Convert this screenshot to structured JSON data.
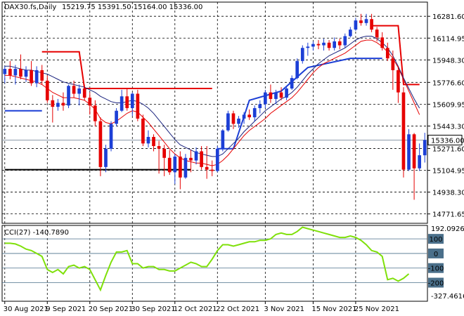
{
  "header": {
    "symbol": "DAX30.fs,Daily",
    "ohlc": "15219.75 15391.50 15164.00 15336.00"
  },
  "chart_data": {
    "type": "candlestick",
    "price_panel": {
      "y_ticks": [
        16281.6,
        16114.95,
        15948.3,
        15776.6,
        15609.95,
        15443.3,
        15271.6,
        15104.95,
        14938.3,
        14771.65
      ],
      "y_tick_labels": [
        "16281.60",
        "16114.95",
        "15948.30",
        "15776.60",
        "15609.95",
        "15443.30",
        "15271.60",
        "15104.95",
        "14938.30",
        "14771.65"
      ],
      "ylim": [
        14700,
        16390
      ],
      "current_price": 15336.0,
      "current_price_label": "15336.00",
      "candles": [
        {
          "o": 15840,
          "h": 15900,
          "l": 15770,
          "c": 15880
        },
        {
          "o": 15880,
          "h": 15940,
          "l": 15800,
          "c": 15830
        },
        {
          "o": 15830,
          "h": 15910,
          "l": 15760,
          "c": 15880
        },
        {
          "o": 15880,
          "h": 15990,
          "l": 15800,
          "c": 15820
        },
        {
          "o": 15820,
          "h": 15900,
          "l": 15780,
          "c": 15870
        },
        {
          "o": 15870,
          "h": 15940,
          "l": 15750,
          "c": 15770
        },
        {
          "o": 15770,
          "h": 15900,
          "l": 15740,
          "c": 15870
        },
        {
          "o": 15870,
          "h": 15910,
          "l": 15760,
          "c": 15790
        },
        {
          "o": 15790,
          "h": 15830,
          "l": 15620,
          "c": 15640
        },
        {
          "o": 15640,
          "h": 15680,
          "l": 15470,
          "c": 15590
        },
        {
          "o": 15590,
          "h": 15650,
          "l": 15560,
          "c": 15620
        },
        {
          "o": 15620,
          "h": 15700,
          "l": 15560,
          "c": 15600
        },
        {
          "o": 15600,
          "h": 15760,
          "l": 15580,
          "c": 15750
        },
        {
          "o": 15750,
          "h": 15790,
          "l": 15660,
          "c": 15690
        },
        {
          "o": 15690,
          "h": 15760,
          "l": 15600,
          "c": 15730
        },
        {
          "o": 15730,
          "h": 15760,
          "l": 15640,
          "c": 15660
        },
        {
          "o": 15660,
          "h": 15700,
          "l": 15530,
          "c": 15600
        },
        {
          "o": 15600,
          "h": 15640,
          "l": 15440,
          "c": 15480
        },
        {
          "o": 15480,
          "h": 15510,
          "l": 15060,
          "c": 15130
        },
        {
          "o": 15130,
          "h": 15300,
          "l": 15090,
          "c": 15270
        },
        {
          "o": 15270,
          "h": 15480,
          "l": 15250,
          "c": 15460
        },
        {
          "o": 15460,
          "h": 15580,
          "l": 15440,
          "c": 15560
        },
        {
          "o": 15560,
          "h": 15720,
          "l": 15550,
          "c": 15670
        },
        {
          "o": 15670,
          "h": 15730,
          "l": 15560,
          "c": 15580
        },
        {
          "o": 15580,
          "h": 15700,
          "l": 15520,
          "c": 15690
        },
        {
          "o": 15690,
          "h": 15720,
          "l": 15480,
          "c": 15500
        },
        {
          "o": 15500,
          "h": 15530,
          "l": 15290,
          "c": 15310
        },
        {
          "o": 15310,
          "h": 15410,
          "l": 15280,
          "c": 15360
        },
        {
          "o": 15360,
          "h": 15380,
          "l": 15250,
          "c": 15290
        },
        {
          "o": 15290,
          "h": 15330,
          "l": 15080,
          "c": 15270
        },
        {
          "o": 15270,
          "h": 15300,
          "l": 15060,
          "c": 15200
        },
        {
          "o": 15200,
          "h": 15260,
          "l": 15070,
          "c": 15090
        },
        {
          "o": 15090,
          "h": 15230,
          "l": 15000,
          "c": 15210
        },
        {
          "o": 15210,
          "h": 15250,
          "l": 14960,
          "c": 15050
        },
        {
          "o": 15050,
          "h": 15230,
          "l": 15040,
          "c": 15200
        },
        {
          "o": 15200,
          "h": 15260,
          "l": 15090,
          "c": 15180
        },
        {
          "o": 15180,
          "h": 15280,
          "l": 15150,
          "c": 15250
        },
        {
          "o": 15250,
          "h": 15290,
          "l": 15110,
          "c": 15130
        },
        {
          "o": 15130,
          "h": 15290,
          "l": 15040,
          "c": 15110
        },
        {
          "o": 15110,
          "h": 15180,
          "l": 15060,
          "c": 15100
        },
        {
          "o": 15100,
          "h": 15290,
          "l": 15090,
          "c": 15270
        },
        {
          "o": 15270,
          "h": 15420,
          "l": 15250,
          "c": 15410
        },
        {
          "o": 15410,
          "h": 15560,
          "l": 15400,
          "c": 15540
        },
        {
          "o": 15540,
          "h": 15560,
          "l": 15420,
          "c": 15460
        },
        {
          "o": 15460,
          "h": 15520,
          "l": 15430,
          "c": 15500
        },
        {
          "o": 15500,
          "h": 15550,
          "l": 15460,
          "c": 15530
        },
        {
          "o": 15530,
          "h": 15570,
          "l": 15490,
          "c": 15510
        },
        {
          "o": 15510,
          "h": 15600,
          "l": 15480,
          "c": 15580
        },
        {
          "o": 15580,
          "h": 15640,
          "l": 15540,
          "c": 15610
        },
        {
          "o": 15610,
          "h": 15720,
          "l": 15580,
          "c": 15700
        },
        {
          "o": 15700,
          "h": 15760,
          "l": 15620,
          "c": 15650
        },
        {
          "o": 15650,
          "h": 15720,
          "l": 15610,
          "c": 15700
        },
        {
          "o": 15700,
          "h": 15740,
          "l": 15640,
          "c": 15660
        },
        {
          "o": 15660,
          "h": 15750,
          "l": 15640,
          "c": 15730
        },
        {
          "o": 15730,
          "h": 15830,
          "l": 15720,
          "c": 15810
        },
        {
          "o": 15810,
          "h": 15960,
          "l": 15800,
          "c": 15940
        },
        {
          "o": 15940,
          "h": 16060,
          "l": 15920,
          "c": 16040
        },
        {
          "o": 16040,
          "h": 16080,
          "l": 15980,
          "c": 16050
        },
        {
          "o": 16050,
          "h": 16090,
          "l": 16020,
          "c": 16070
        },
        {
          "o": 16070,
          "h": 16100,
          "l": 16030,
          "c": 16060
        },
        {
          "o": 16060,
          "h": 16110,
          "l": 16020,
          "c": 16080
        },
        {
          "o": 16080,
          "h": 16100,
          "l": 16020,
          "c": 16040
        },
        {
          "o": 16040,
          "h": 16120,
          "l": 16020,
          "c": 16090
        },
        {
          "o": 16090,
          "h": 16110,
          "l": 16030,
          "c": 16060
        },
        {
          "o": 16060,
          "h": 16150,
          "l": 16040,
          "c": 16130
        },
        {
          "o": 16130,
          "h": 16200,
          "l": 16120,
          "c": 16180
        },
        {
          "o": 16180,
          "h": 16270,
          "l": 16170,
          "c": 16250
        },
        {
          "o": 16250,
          "h": 16300,
          "l": 16210,
          "c": 16230
        },
        {
          "o": 16230,
          "h": 16300,
          "l": 16210,
          "c": 16260
        },
        {
          "o": 16260,
          "h": 16300,
          "l": 16160,
          "c": 16180
        },
        {
          "o": 16180,
          "h": 16200,
          "l": 16090,
          "c": 16120
        },
        {
          "o": 16120,
          "h": 16160,
          "l": 16020,
          "c": 16040
        },
        {
          "o": 16040,
          "h": 16080,
          "l": 15940,
          "c": 15960
        },
        {
          "o": 15960,
          "h": 16020,
          "l": 15720,
          "c": 15870
        },
        {
          "o": 15870,
          "h": 15900,
          "l": 15620,
          "c": 15700
        },
        {
          "o": 15700,
          "h": 15740,
          "l": 15050,
          "c": 15110
        },
        {
          "o": 15110,
          "h": 15420,
          "l": 15100,
          "c": 15380
        },
        {
          "o": 15380,
          "h": 15390,
          "l": 14880,
          "c": 15120
        },
        {
          "o": 15120,
          "h": 15310,
          "l": 15100,
          "c": 15220
        },
        {
          "o": 15219.75,
          "h": 15391.5,
          "l": 15164.0,
          "c": 15336.0
        }
      ],
      "ma_blue": [
        15900,
        15900,
        15890,
        15880,
        15870,
        15870,
        15860,
        15850,
        15840,
        15820,
        15800,
        15780,
        15770,
        15760,
        15750,
        15740,
        15720,
        15700,
        15670,
        15650,
        15630,
        15620,
        15620,
        15630,
        15640,
        15630,
        15610,
        15580,
        15540,
        15490,
        15440,
        15390,
        15340,
        15300,
        15280,
        15260,
        15240,
        15230,
        15220,
        15210,
        15210,
        15230,
        15270,
        15310,
        15350,
        15400,
        15440,
        15480,
        15520,
        15560,
        15590,
        15620,
        15650,
        15670,
        15700,
        15740,
        15790,
        15840,
        15880,
        15920,
        15950,
        15980,
        16000,
        16020,
        16040,
        16070,
        16100,
        16120,
        16130,
        16130,
        16110,
        16080,
        16040,
        15980,
        15900,
        15810,
        15730,
        15650,
        15580
      ],
      "ma_red": [
        15830,
        15830,
        15820,
        15810,
        15800,
        15790,
        15780,
        15760,
        15730,
        15700,
        15680,
        15660,
        15660,
        15660,
        15650,
        15640,
        15610,
        15570,
        15500,
        15470,
        15460,
        15480,
        15510,
        15540,
        15560,
        15550,
        15510,
        15470,
        15420,
        15370,
        15320,
        15270,
        15230,
        15200,
        15180,
        15170,
        15160,
        15160,
        15150,
        15140,
        15150,
        15180,
        15220,
        15270,
        15320,
        15370,
        15410,
        15440,
        15470,
        15500,
        15540,
        15570,
        15600,
        15630,
        15660,
        15700,
        15750,
        15800,
        15850,
        15890,
        15920,
        15940,
        15960,
        15980,
        16000,
        16030,
        16060,
        16090,
        16100,
        16100,
        16080,
        16050,
        16010,
        15960,
        15890,
        15800,
        15710,
        15620,
        15530
      ]
    },
    "levels": [
      {
        "name": "resistance-high",
        "color": "#e60000",
        "points": [
          [
            7,
            16010
          ],
          [
            14,
            16010
          ],
          [
            15,
            15730
          ],
          [
            39,
            15730
          ]
        ]
      },
      {
        "name": "support-high",
        "color": "#1c3fd6",
        "points": [
          [
            0,
            15560
          ],
          [
            7,
            15560
          ]
        ]
      },
      {
        "name": "support-low",
        "color": "#000000",
        "points": [
          [
            0,
            15110
          ],
          [
            35,
            15110
          ]
        ]
      },
      {
        "name": "trend-step",
        "color": "#1c3fd6",
        "points": [
          [
            40,
            15270
          ],
          [
            43,
            15270
          ],
          [
            46,
            15640
          ],
          [
            52,
            15710
          ],
          [
            57,
            15890
          ],
          [
            65,
            15960
          ],
          [
            70,
            15960
          ],
          [
            71,
            15960
          ]
        ]
      },
      {
        "name": "red-step",
        "color": "#e60000",
        "points": [
          [
            69,
            16210
          ],
          [
            74,
            16210
          ],
          [
            75,
            15760
          ],
          [
            78,
            15760
          ]
        ]
      }
    ],
    "cci_panel": {
      "title": "CCI(27) -140.7890",
      "top_label": "192.0926",
      "bottom_label": "-327.4616",
      "ylim": [
        -327.4616,
        192.0926
      ],
      "levels": [
        100,
        0,
        -100,
        -200
      ],
      "level_labels": [
        "100",
        "0",
        "-100",
        "-200"
      ],
      "values": [
        70,
        70,
        65,
        50,
        30,
        20,
        0,
        -20,
        -110,
        -130,
        -110,
        -140,
        -90,
        -80,
        -100,
        -90,
        -110,
        -180,
        -250,
        -150,
        -60,
        10,
        10,
        20,
        -70,
        -70,
        -100,
        -90,
        -90,
        -110,
        -110,
        -120,
        -120,
        -100,
        -80,
        -60,
        -70,
        -90,
        -90,
        -40,
        20,
        60,
        60,
        50,
        60,
        70,
        80,
        80,
        90,
        90,
        100,
        130,
        140,
        130,
        130,
        150,
        180,
        170,
        160,
        150,
        140,
        130,
        120,
        110,
        110,
        120,
        110,
        90,
        60,
        20,
        10,
        -20,
        -180,
        -170,
        -190,
        -170,
        -140
      ]
    },
    "x_tick_labels": [
      "30 Aug 2021",
      "9 Sep 2021",
      "20 Sep 2021",
      "30 Sep 2021",
      "12 Oct 2021",
      "22 Oct 2021",
      "3 Nov 2021",
      "15 Nov 2021",
      "25 Nov 2021"
    ],
    "x_tick_index": [
      0,
      8,
      16,
      24,
      32,
      40,
      49,
      58,
      66
    ]
  }
}
